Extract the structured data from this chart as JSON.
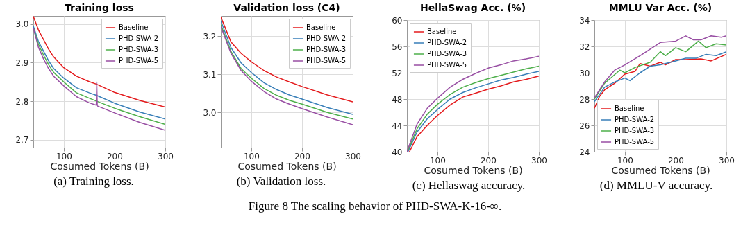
{
  "chart_data": [
    {
      "type": "line",
      "title": "Training loss",
      "xlabel": "Cosumed Tokens (B)",
      "xlim": [
        40,
        300
      ],
      "xticks": [
        100,
        200,
        300
      ],
      "ylim": [
        2.68,
        3.021
      ],
      "yticks": [
        2.7,
        2.8,
        2.9,
        {
          "value": 3,
          "label": "3.0"
        }
      ],
      "grid": true,
      "legend": "top right",
      "annotations": [
        "(a) Training loss.",
        "Figure 8 The scaling behavior of PHD-SWA-K-16-∞."
      ],
      "series": [
        {
          "name": "Baseline",
          "color": "#e41a1c",
          "x": [
            40,
            50,
            60,
            70,
            80,
            100,
            125,
            150,
            165,
            200,
            250,
            300
          ],
          "values": [
            3.02,
            2.985,
            2.96,
            2.935,
            2.915,
            2.887,
            2.865,
            2.851,
            2.844,
            2.823,
            2.802,
            2.785
          ]
        },
        {
          "name": "PHD-SWA-2",
          "color": "#377eb8",
          "x": [
            40,
            50,
            60,
            70,
            80,
            100,
            125,
            150,
            165,
            200,
            250,
            300
          ],
          "values": [
            2.995,
            2.955,
            2.93,
            2.905,
            2.885,
            2.86,
            2.835,
            2.822,
            2.815,
            2.795,
            2.772,
            2.754
          ]
        },
        {
          "name": "PHD-SWA-3",
          "color": "#4daf4a",
          "x": [
            40,
            50,
            60,
            70,
            80,
            100,
            125,
            150,
            165,
            200,
            250,
            300
          ],
          "values": [
            2.99,
            2.948,
            2.92,
            2.895,
            2.875,
            2.85,
            2.822,
            2.808,
            2.8,
            2.782,
            2.76,
            2.74
          ]
        },
        {
          "name": "PHD-SWA-5",
          "color": "#984ea3",
          "x": [
            40,
            50,
            60,
            70,
            80,
            100,
            125,
            150,
            164,
            165,
            166,
            200,
            250,
            300
          ],
          "values": [
            2.99,
            2.94,
            2.91,
            2.885,
            2.865,
            2.84,
            2.812,
            2.796,
            2.79,
            2.85,
            2.788,
            2.77,
            2.745,
            2.725
          ]
        }
      ]
    },
    {
      "type": "line",
      "title": "Validation loss (C4)",
      "xlabel": "Cosumed Tokens (B)",
      "xlim": [
        40,
        300
      ],
      "xticks": [
        100,
        200,
        300
      ],
      "ylim": [
        2.908,
        3.253
      ],
      "yticks": [
        {
          "value": 3,
          "label": "3.0"
        },
        3.1,
        3.2
      ],
      "grid": true,
      "legend": "top right",
      "annotations": [
        "(b) Validation loss."
      ],
      "series": [
        {
          "name": "Baseline",
          "color": "#e41a1c",
          "x": [
            40,
            60,
            80,
            100,
            125,
            150,
            175,
            200,
            250,
            300
          ],
          "values": [
            3.25,
            3.185,
            3.155,
            3.133,
            3.11,
            3.093,
            3.08,
            3.068,
            3.046,
            3.028
          ]
        },
        {
          "name": "PHD-SWA-2",
          "color": "#377eb8",
          "x": [
            40,
            60,
            80,
            100,
            125,
            150,
            175,
            200,
            250,
            300
          ],
          "values": [
            3.24,
            3.17,
            3.13,
            3.105,
            3.078,
            3.06,
            3.046,
            3.035,
            3.013,
            2.995
          ]
        },
        {
          "name": "PHD-SWA-3",
          "color": "#4daf4a",
          "x": [
            40,
            60,
            80,
            100,
            125,
            150,
            175,
            200,
            250,
            300
          ],
          "values": [
            3.23,
            3.16,
            3.115,
            3.09,
            3.063,
            3.045,
            3.032,
            3.022,
            3.0,
            2.983
          ]
        },
        {
          "name": "PHD-SWA-5",
          "color": "#984ea3",
          "x": [
            40,
            60,
            80,
            100,
            125,
            150,
            175,
            200,
            250,
            300
          ],
          "values": [
            3.225,
            3.155,
            3.11,
            3.082,
            3.055,
            3.035,
            3.022,
            3.01,
            2.988,
            2.968
          ]
        }
      ]
    },
    {
      "type": "line",
      "title": "HellaSwag Acc. (%)",
      "xlabel": "Cosumed Tokens (B)",
      "xlim": [
        40,
        300
      ],
      "xticks": [
        100,
        200,
        300
      ],
      "ylim": [
        40,
        60
      ],
      "yticks": [
        40,
        44,
        48,
        52,
        56,
        60
      ],
      "grid": true,
      "legend": "top left",
      "annotations": [
        "(c) Hellaswag accuracy."
      ],
      "series": [
        {
          "name": "Baseline",
          "color": "#e41a1c",
          "x": [
            45,
            60,
            80,
            100,
            125,
            150,
            175,
            200,
            225,
            250,
            275,
            300
          ],
          "values": [
            40,
            42.3,
            44,
            45.5,
            47.1,
            48.3,
            48.9,
            49.5,
            50,
            50.6,
            51,
            51.5
          ]
        },
        {
          "name": "PHD-SWA-2",
          "color": "#377eb8",
          "x": [
            42,
            60,
            80,
            100,
            125,
            150,
            175,
            200,
            225,
            250,
            275,
            300
          ],
          "values": [
            40,
            43,
            45,
            46.4,
            48,
            49,
            49.7,
            50.3,
            50.9,
            51.3,
            51.8,
            52.2
          ]
        },
        {
          "name": "PHD-SWA-3",
          "color": "#4daf4a",
          "x": [
            41,
            60,
            80,
            100,
            125,
            150,
            175,
            200,
            225,
            250,
            275,
            300
          ],
          "values": [
            40,
            43.5,
            45.7,
            47.2,
            48.7,
            49.8,
            50.5,
            51.1,
            51.6,
            52.1,
            52.6,
            53
          ]
        },
        {
          "name": "PHD-SWA-5",
          "color": "#984ea3",
          "x": [
            40,
            60,
            80,
            100,
            125,
            150,
            175,
            200,
            225,
            250,
            275,
            300
          ],
          "values": [
            40,
            44.2,
            46.6,
            48.1,
            49.8,
            51,
            51.9,
            52.7,
            53.2,
            53.8,
            54.1,
            54.5
          ]
        }
      ]
    },
    {
      "type": "line",
      "title": "MMLU Var Acc. (%)",
      "xlabel": "Cosumed Tokens (B)",
      "xlim": [
        40,
        300
      ],
      "xticks": [
        100,
        200,
        300
      ],
      "ylim": [
        24,
        34
      ],
      "yticks": [
        24,
        26,
        28,
        30,
        32,
        34
      ],
      "grid": true,
      "legend": "bottom left",
      "annotations": [
        "(d) MMLU-V accuracy."
      ],
      "series": [
        {
          "name": "Baseline",
          "color": "#e41a1c",
          "x": [
            40,
            50,
            60,
            80,
            100,
            120,
            130,
            150,
            170,
            180,
            200,
            220,
            250,
            270,
            300
          ],
          "values": [
            27.3,
            28.2,
            28.7,
            29.2,
            29.9,
            30.1,
            30.7,
            30.5,
            30.8,
            30.6,
            31.0,
            31.0,
            31.05,
            30.9,
            31.4
          ]
        },
        {
          "name": "PHD-SWA-2",
          "color": "#377eb8",
          "x": [
            40,
            60,
            80,
            100,
            110,
            130,
            150,
            170,
            200,
            220,
            240,
            260,
            280,
            300
          ],
          "values": [
            27.8,
            28.9,
            29.3,
            29.6,
            29.4,
            30.0,
            30.5,
            30.6,
            30.9,
            31.1,
            31.1,
            31.4,
            31.3,
            31.6
          ]
        },
        {
          "name": "PHD-SWA-3",
          "color": "#4daf4a",
          "x": [
            40,
            60,
            90,
            100,
            120,
            150,
            170,
            180,
            200,
            220,
            245,
            260,
            280,
            300
          ],
          "values": [
            28.0,
            29.2,
            30.2,
            30.0,
            30.4,
            30.8,
            31.6,
            31.3,
            31.9,
            31.6,
            32.4,
            31.9,
            32.2,
            32.1
          ]
        },
        {
          "name": "PHD-SWA-5",
          "color": "#984ea3",
          "x": [
            40,
            60,
            80,
            100,
            130,
            150,
            170,
            200,
            220,
            235,
            250,
            270,
            290,
            300
          ],
          "values": [
            28.1,
            29.3,
            30.2,
            30.6,
            31.3,
            31.8,
            32.3,
            32.4,
            32.8,
            32.5,
            32.5,
            32.8,
            32.7,
            32.8
          ]
        }
      ]
    }
  ]
}
